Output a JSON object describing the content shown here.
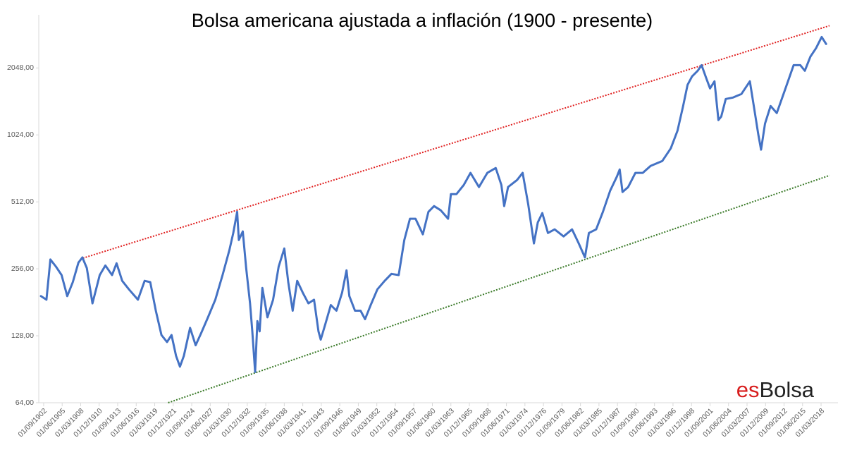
{
  "chart_data": {
    "type": "line",
    "title": "Bolsa americana ajustada a inflación (1900 - presente)",
    "logo": [
      "es",
      "Bolsa"
    ],
    "log_scale": true,
    "grid": false,
    "xlim": [
      "01/06/1901",
      "01/06/2019"
    ],
    "xticks": [
      "01/09/1902",
      "01/06/1905",
      "01/03/1908",
      "01/12/1910",
      "01/09/1913",
      "01/06/1916",
      "01/03/1919",
      "01/12/1921",
      "01/09/1924",
      "01/06/1927",
      "01/03/1930",
      "01/12/1932",
      "01/09/1935",
      "01/06/1938",
      "01/03/1941",
      "01/12/1943",
      "01/09/1946",
      "01/06/1949",
      "01/03/1952",
      "01/12/1954",
      "01/09/1957",
      "01/06/1960",
      "01/03/1963",
      "01/12/1965",
      "01/09/1968",
      "01/06/1971",
      "01/03/1974",
      "01/12/1976",
      "01/09/1979",
      "01/06/1982",
      "01/03/1985",
      "01/12/1987",
      "01/09/1990",
      "01/06/1993",
      "01/03/1996",
      "01/12/1998",
      "01/09/2001",
      "01/06/2004",
      "01/03/2007",
      "01/12/2009",
      "01/09/2012",
      "01/06/2015",
      "01/03/2018"
    ],
    "ylim": [
      64,
      3300
    ],
    "yticks": [
      {
        "value": 64,
        "label": "64,00"
      },
      {
        "value": 128,
        "label": "128,00"
      },
      {
        "value": 256,
        "label": "256,00"
      },
      {
        "value": 512,
        "label": "512,00"
      },
      {
        "value": 1024,
        "label": "1024,00"
      },
      {
        "value": 2048,
        "label": "2048,00"
      }
    ],
    "series": [
      {
        "color": "#4472c4",
        "x": [
          "01/04/1902",
          "01/02/1903",
          "01/09/1903",
          "01/07/1904",
          "01/05/1905",
          "01/03/1906",
          "01/01/1907",
          "01/11/1907",
          "01/06/1908",
          "01/02/1909",
          "01/12/1909",
          "01/01/1911",
          "01/11/1911",
          "01/11/1912",
          "01/07/1913",
          "01/05/1914",
          "01/05/1915",
          "01/09/1916",
          "01/09/1917",
          "01/07/1918",
          "01/05/1919",
          "01/03/1920",
          "01/01/1921",
          "01/09/1921",
          "01/05/1922",
          "01/12/1922",
          "01/07/1923",
          "01/06/1924",
          "01/04/1925",
          "01/02/1926",
          "01/02/1927",
          "01/03/1928",
          "01/04/1929",
          "01/04/1930",
          "01/11/1930",
          "01/06/1931",
          "01/09/1931",
          "01/04/1932",
          "01/10/1932",
          "01/05/1933",
          "01/09/1933",
          "01/02/1934",
          "01/06/1934",
          "01/10/1934",
          "01/03/1935",
          "01/12/1935",
          "01/10/1936",
          "01/08/1937",
          "01/06/1938",
          "01/01/1939",
          "01/09/1939",
          "01/05/1940",
          "01/03/1941",
          "01/01/1942",
          "01/11/1942",
          "01/07/1943",
          "01/11/1943",
          "01/07/1944",
          "01/05/1945",
          "01/03/1946",
          "01/01/1947",
          "01/09/1947",
          "01/02/1948",
          "01/12/1948",
          "01/10/1949",
          "01/06/1950",
          "01/04/1951",
          "01/04/1952",
          "01/05/1953",
          "01/05/1954",
          "01/06/1955",
          "01/04/1956",
          "01/02/1957",
          "01/12/1957",
          "01/01/1959",
          "01/11/1959",
          "01/09/1960",
          "01/09/1961",
          "01/10/1962",
          "01/03/1963",
          "01/01/1964",
          "01/02/1965",
          "01/02/1966",
          "01/05/1967",
          "01/08/1968",
          "01/11/1969",
          "01/09/1970",
          "01/02/1971",
          "01/09/1971",
          "01/01/1973",
          "01/11/1973",
          "01/09/1974",
          "01/07/1975",
          "01/02/1976",
          "01/10/1976",
          "01/08/1977",
          "01/08/1978",
          "01/12/1979",
          "01/03/1981",
          "01/03/1982",
          "01/02/1983",
          "01/09/1983",
          "01/10/1984",
          "01/10/1985",
          "01/11/1986",
          "01/11/1987",
          "01/04/1988",
          "01/09/1988",
          "01/07/1989",
          "01/08/1990",
          "01/09/1991",
          "01/11/1992",
          "01/08/1994",
          "01/11/1995",
          "01/11/1996",
          "01/09/1997",
          "01/05/1998",
          "01/01/1999",
          "01/11/1999",
          "01/06/2000",
          "01/02/2001",
          "01/09/2001",
          "01/05/2002",
          "01/12/2002",
          "01/05/2003",
          "01/01/2004",
          "01/02/2005",
          "01/05/2006",
          "01/08/2007",
          "01/03/2008",
          "01/11/2008",
          "01/04/2009",
          "01/11/2009",
          "01/09/2010",
          "01/08/2011",
          "01/05/2012",
          "01/04/2013",
          "01/02/2014",
          "01/02/2015",
          "01/10/2015",
          "01/08/2016",
          "01/06/2017",
          "01/04/2018",
          "01/12/2018"
        ],
        "values": [
          193,
          186,
          282,
          262,
          240,
          193,
          223,
          273,
          288,
          258,
          179,
          240,
          265,
          240,
          271,
          226,
          207,
          186,
          226,
          223,
          166,
          129,
          120,
          129,
          104,
          93,
          104,
          139,
          116,
          132,
          155,
          186,
          240,
          310,
          371,
          462,
          345,
          377,
          258,
          179,
          134,
          88,
          149,
          134,
          210,
          155,
          186,
          262,
          316,
          223,
          166,
          226,
          200,
          179,
          186,
          134,
          123,
          144,
          176,
          166,
          200,
          252,
          193,
          166,
          166,
          152,
          176,
          207,
          226,
          243,
          240,
          345,
          430,
          430,
          366,
          462,
          490,
          469,
          430,
          555,
          555,
          610,
          691,
          597,
          691,
          727,
          610,
          490,
          597,
          642,
          691,
          497,
          333,
          414,
          456,
          371,
          385,
          358,
          385,
          333,
          288,
          371,
          385,
          462,
          575,
          666,
          716,
          567,
          597,
          691,
          691,
          743,
          782,
          891,
          1069,
          1381,
          1719,
          1877,
          1990,
          2108,
          1849,
          1658,
          1783,
          1194,
          1238,
          1486,
          1508,
          1564,
          1783,
          1381,
          1032,
          879,
          1151,
          1381,
          1284,
          1486,
          1783,
          2108,
          2108,
          1990,
          2302,
          2513,
          2822,
          2626
        ]
      }
    ],
    "trend_lines": [
      {
        "color": "#e02020",
        "x": [
          "01/07/1908",
          "01/06/2019"
        ],
        "values": [
          286,
          3172
        ]
      },
      {
        "color": "#3a7a28",
        "x": [
          "01/03/1921",
          "01/06/2019"
        ],
        "values": [
          64,
          673
        ]
      }
    ]
  }
}
